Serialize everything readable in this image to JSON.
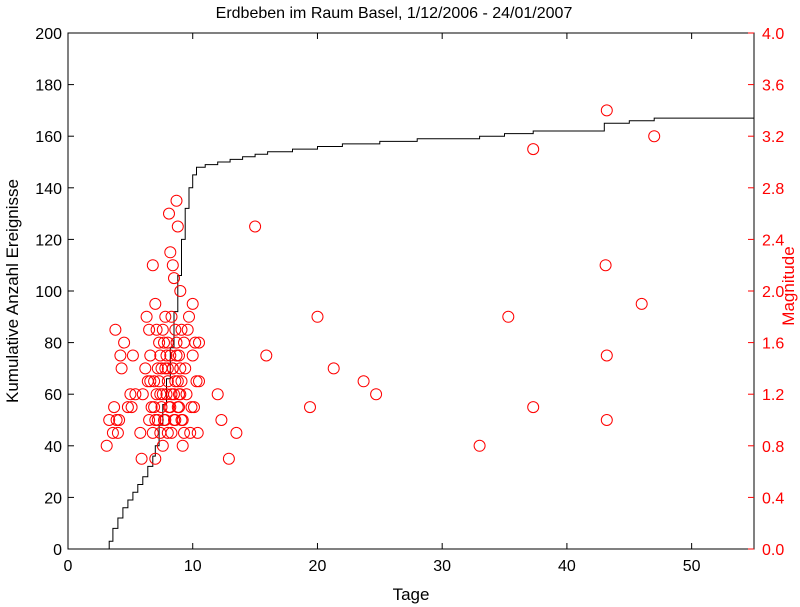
{
  "chart_data": {
    "type": "scatter",
    "title": "Erdbeben im Raum Basel, 1/12/2006 - 24/01/2007",
    "xlabel": "Tage",
    "ylabel_left": "Kumulative Anzahl Ereignisse",
    "ylabel_right": "Magnitude",
    "xlim": [
      0,
      55
    ],
    "ylim_left": [
      0,
      200
    ],
    "ylim_right": [
      0,
      4.0
    ],
    "x_ticks": [
      0,
      10,
      20,
      30,
      40,
      50
    ],
    "y_left_ticks": [
      0,
      20,
      40,
      60,
      80,
      100,
      120,
      140,
      160,
      180,
      200
    ],
    "y_right_ticks": [
      "0.0",
      "0.4",
      "0.8",
      "1.2",
      "1.6",
      "2.0",
      "2.4",
      "2.8",
      "3.2",
      "3.6",
      "4.0"
    ],
    "grid": false,
    "colors": {
      "cumulative": "#000000",
      "magnitude": "#ff0000"
    },
    "cumulative": {
      "x": [
        3.0,
        3.3,
        3.6,
        4.0,
        4.4,
        4.8,
        5.2,
        5.6,
        6.0,
        6.4,
        6.8,
        7.0,
        7.3,
        7.6,
        7.9,
        8.2,
        8.5,
        8.8,
        9.1,
        9.4,
        9.7,
        10.0,
        10.3,
        10.6,
        11.0,
        12.0,
        13.0,
        14.0,
        15.0,
        16.0,
        18.0,
        20.0,
        22.0,
        25.0,
        28.0,
        33.0,
        35.0,
        37.3,
        43.0,
        45.0,
        47.0,
        55.0
      ],
      "y": [
        0,
        3,
        8,
        12,
        16,
        19,
        22,
        25,
        28,
        32,
        36,
        40,
        48,
        56,
        66,
        78,
        92,
        106,
        120,
        132,
        140,
        145,
        148,
        148,
        149,
        150,
        151,
        152,
        153,
        154,
        155,
        156,
        157,
        158,
        159,
        160,
        161,
        162,
        165,
        166,
        167,
        168
      ]
    },
    "magnitude": {
      "x": [
        3.1,
        3.3,
        3.6,
        3.7,
        3.8,
        3.9,
        4.0,
        4.1,
        4.2,
        4.3,
        4.5,
        4.8,
        5.0,
        5.1,
        5.2,
        5.4,
        5.8,
        5.9,
        6.0,
        6.2,
        6.3,
        6.4,
        6.5,
        6.5,
        6.6,
        6.6,
        6.7,
        6.8,
        6.8,
        6.9,
        6.9,
        7.0,
        7.0,
        7.1,
        7.1,
        7.2,
        7.2,
        7.3,
        7.3,
        7.4,
        7.4,
        7.5,
        7.5,
        7.6,
        7.6,
        7.7,
        7.7,
        7.8,
        7.8,
        7.9,
        7.9,
        8.0,
        8.0,
        8.0,
        8.1,
        8.1,
        8.2,
        8.2,
        8.3,
        8.3,
        8.4,
        8.4,
        8.5,
        8.5,
        8.6,
        8.6,
        8.7,
        8.7,
        8.8,
        8.8,
        8.9,
        8.9,
        9.0,
        9.0,
        9.1,
        9.1,
        9.2,
        9.2,
        9.3,
        9.4,
        9.5,
        9.6,
        9.7,
        9.8,
        9.9,
        10.0,
        10.1,
        10.2,
        10.3,
        10.4,
        10.5,
        7.0,
        7.4,
        7.6,
        7.8,
        8.0,
        8.2,
        8.3,
        8.4,
        8.5,
        8.6,
        8.7,
        8.8,
        8.9,
        9.0,
        9.1,
        9.3,
        10.0,
        10.5,
        12.0,
        12.3,
        12.9,
        13.5,
        15.0,
        15.9,
        19.4,
        20.0,
        21.3,
        23.7,
        24.7,
        33.0,
        35.3,
        37.3,
        37.3,
        43.1,
        43.2,
        43.2,
        43.2,
        46.0,
        47.0
      ],
      "y": [
        0.8,
        1.0,
        0.9,
        1.1,
        1.7,
        1.0,
        0.9,
        1.0,
        1.5,
        1.4,
        1.6,
        1.1,
        1.2,
        1.1,
        1.5,
        1.2,
        0.9,
        0.7,
        1.2,
        1.4,
        1.8,
        1.3,
        1.0,
        1.7,
        1.5,
        1.3,
        1.1,
        0.9,
        2.2,
        1.1,
        1.3,
        0.7,
        1.9,
        1.2,
        1.7,
        1.0,
        1.4,
        1.3,
        1.6,
        1.2,
        1.5,
        1.4,
        1.1,
        1.7,
        0.8,
        1.6,
        1.0,
        1.4,
        1.8,
        1.2,
        1.5,
        0.9,
        1.3,
        1.6,
        2.6,
        1.1,
        2.3,
        1.5,
        1.8,
        1.2,
        2.2,
        1.4,
        1.0,
        2.1,
        1.7,
        1.3,
        2.7,
        1.6,
        1.1,
        2.5,
        1.5,
        1.2,
        2.0,
        1.4,
        1.3,
        1.7,
        0.8,
        1.0,
        1.6,
        1.4,
        1.2,
        1.7,
        1.8,
        0.9,
        1.1,
        1.5,
        1.1,
        1.6,
        1.3,
        0.9,
        1.6,
        1.0,
        0.9,
        1.2,
        1.0,
        1.4,
        1.1,
        0.9,
        1.4,
        1.2,
        1.0,
        1.5,
        1.3,
        1.1,
        1.2,
        1.0,
        0.9,
        1.9,
        1.3,
        1.2,
        1.0,
        0.7,
        0.9,
        2.5,
        1.5,
        1.1,
        1.8,
        1.4,
        1.3,
        1.2,
        0.8,
        1.8,
        1.1,
        3.1,
        2.2,
        1.5,
        1.0,
        3.4,
        1.9,
        3.2
      ]
    }
  }
}
